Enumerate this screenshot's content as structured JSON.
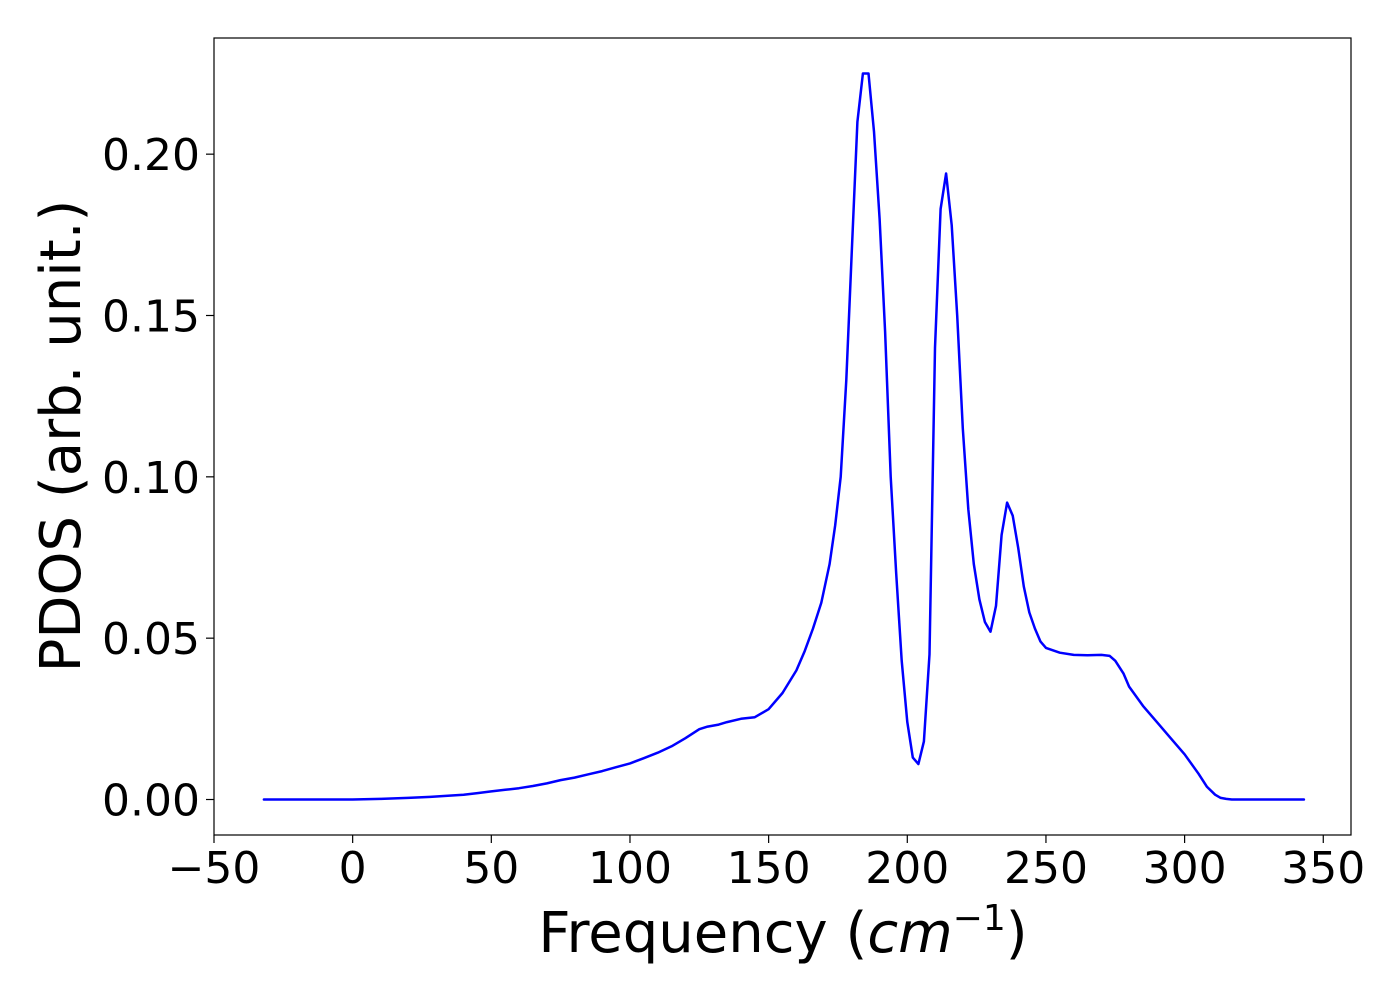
{
  "chart_data": {
    "type": "line",
    "title": "",
    "xlabel": {
      "text": "Frequency (",
      "unit_base": "cm",
      "unit_exp": "−1",
      "close": ")"
    },
    "ylabel": "PDOS (arb. unit.)",
    "xlim": [
      -50,
      360
    ],
    "ylim": [
      -0.011,
      0.236
    ],
    "xticks": [
      -50,
      0,
      50,
      100,
      150,
      200,
      250,
      300,
      350
    ],
    "xtick_labels": [
      "−50",
      "0",
      "50",
      "100",
      "150",
      "200",
      "250",
      "300",
      "350"
    ],
    "yticks": [
      0.0,
      0.05,
      0.1,
      0.15,
      0.2
    ],
    "ytick_labels": [
      "0.00",
      "0.05",
      "0.10",
      "0.15",
      "0.20"
    ],
    "grid": false,
    "series": [
      {
        "color": "#0000ff",
        "x": [
          -32,
          0,
          10,
          20,
          28,
          35,
          40,
          45,
          50,
          55,
          60,
          65,
          70,
          75,
          80,
          85,
          90,
          95,
          100,
          105,
          110,
          115,
          120,
          125,
          128,
          132,
          135,
          140,
          145,
          150,
          155,
          160,
          163,
          166,
          169,
          172,
          174,
          176,
          178,
          180,
          182,
          184,
          186,
          188,
          190,
          192,
          194,
          196,
          198,
          200,
          202,
          204,
          206,
          208,
          210,
          212,
          214,
          216,
          218,
          220,
          222,
          224,
          226,
          228,
          230,
          232,
          234,
          236,
          238,
          240,
          242,
          244,
          246,
          248,
          250,
          255,
          260,
          265,
          270,
          273,
          275,
          278,
          280,
          285,
          290,
          295,
          300,
          305,
          308,
          311,
          313,
          315,
          317,
          320,
          330,
          343
        ],
        "y": [
          0.0,
          0.0,
          0.0002,
          0.0005,
          0.0008,
          0.0012,
          0.0015,
          0.002,
          0.0025,
          0.003,
          0.0035,
          0.0042,
          0.005,
          0.006,
          0.0068,
          0.0078,
          0.0088,
          0.01,
          0.0112,
          0.0128,
          0.0145,
          0.0165,
          0.019,
          0.0218,
          0.0226,
          0.0232,
          0.024,
          0.025,
          0.0255,
          0.028,
          0.033,
          0.04,
          0.046,
          0.053,
          0.061,
          0.073,
          0.085,
          0.1,
          0.13,
          0.17,
          0.21,
          0.225,
          0.225,
          0.207,
          0.18,
          0.145,
          0.1,
          0.07,
          0.043,
          0.024,
          0.013,
          0.011,
          0.018,
          0.045,
          0.14,
          0.183,
          0.194,
          0.178,
          0.15,
          0.115,
          0.09,
          0.073,
          0.062,
          0.055,
          0.052,
          0.06,
          0.082,
          0.092,
          0.088,
          0.078,
          0.066,
          0.058,
          0.053,
          0.049,
          0.047,
          0.0455,
          0.0448,
          0.0447,
          0.0448,
          0.0445,
          0.043,
          0.039,
          0.035,
          0.029,
          0.024,
          0.019,
          0.014,
          0.008,
          0.004,
          0.0015,
          0.0005,
          0.0002,
          0.0,
          0.0,
          0.0,
          0.0
        ]
      }
    ]
  }
}
